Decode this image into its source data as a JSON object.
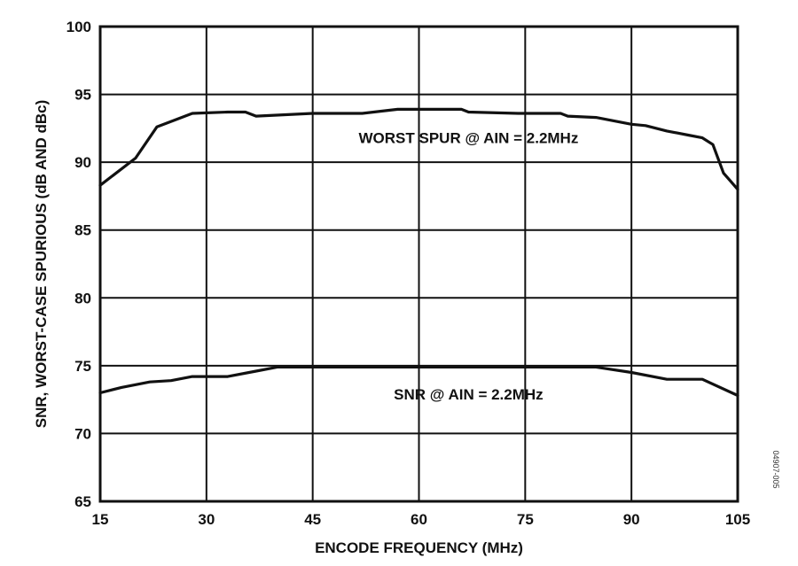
{
  "chart_data": {
    "type": "line",
    "xlabel": "ENCODE FREQUENCY (MHz)",
    "ylabel": "SNR, WORST-CASE SPURIOUS (dB AND dBc)",
    "xlim": [
      15,
      105
    ],
    "ylim": [
      65,
      100
    ],
    "xticks": [
      15,
      30,
      45,
      60,
      75,
      90,
      105
    ],
    "yticks": [
      65,
      70,
      75,
      80,
      85,
      90,
      95,
      100
    ],
    "grid": true,
    "legend": "none",
    "series": [
      {
        "values_x": [
          15,
          20,
          23,
          28,
          33,
          35.5,
          37,
          45,
          52,
          57,
          62,
          66,
          67,
          74,
          80,
          81,
          85,
          90,
          92,
          95,
          98,
          100,
          101.5,
          103,
          104,
          105
        ],
        "values_y": [
          88.3,
          90.3,
          92.6,
          93.6,
          93.7,
          93.7,
          93.4,
          93.6,
          93.6,
          93.9,
          93.9,
          93.9,
          93.7,
          93.6,
          93.6,
          93.4,
          93.3,
          92.8,
          92.7,
          92.3,
          92.0,
          91.8,
          91.3,
          89.2,
          88.6,
          88.0
        ]
      },
      {
        "values_x": [
          15,
          18,
          22,
          25,
          28,
          33,
          37,
          40,
          45,
          55,
          65,
          75,
          85,
          90,
          95,
          100,
          105
        ],
        "values_y": [
          73.0,
          73.4,
          73.8,
          73.9,
          74.2,
          74.2,
          74.6,
          74.9,
          74.9,
          74.9,
          74.9,
          74.9,
          74.9,
          74.5,
          74.0,
          74.0,
          72.8
        ]
      }
    ],
    "annotations": [
      {
        "text": "WORST SPUR @ AIN = 2.2MHz",
        "x": 67,
        "y": 91.4
      },
      {
        "text": "SNR @ AIN = 2.2MHz",
        "x": 67,
        "y": 72.5
      }
    ],
    "figure_id": "04907-005",
    "line_color": "#111111",
    "grid_color": "#111111"
  }
}
